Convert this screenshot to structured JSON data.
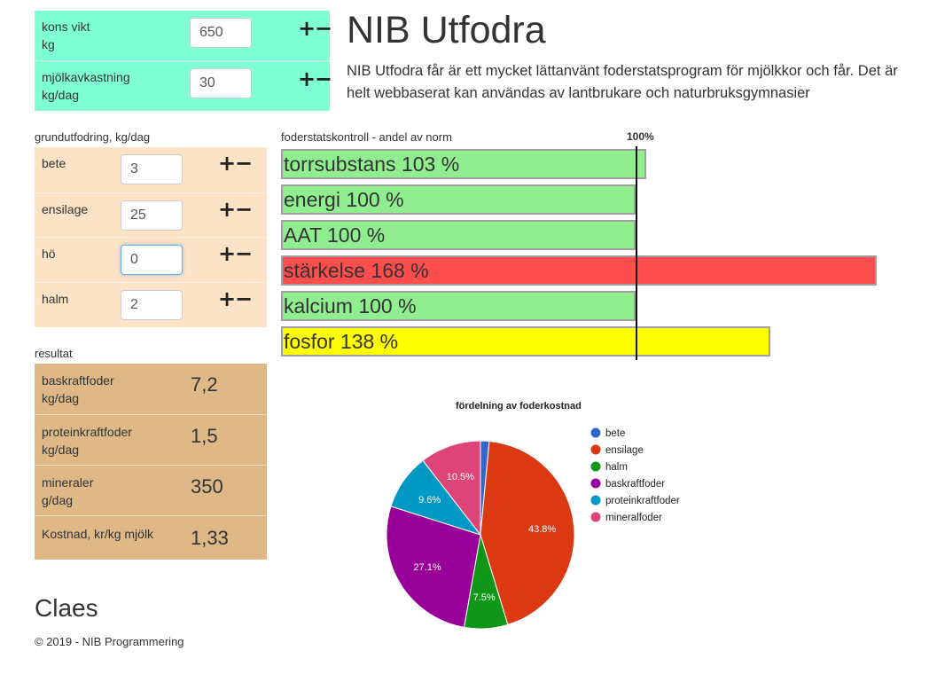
{
  "cow": {
    "rows": [
      {
        "label_line1": "kons vikt",
        "label_line2": "kg",
        "value": "650"
      },
      {
        "label_line1": "mjölkavkastning",
        "label_line2": "kg/dag",
        "value": "30"
      }
    ],
    "plus": "+",
    "minus": "−"
  },
  "header": {
    "title": "NIB Utfodra",
    "intro_line1": "NIB Utfodra får är ett mycket lättanvänt foderstatsprogram för mjölkkor och får. Det är",
    "intro_line2": "helt webbaserat kan användas av lantbrukare och naturbruksgymnasier"
  },
  "feed": {
    "heading": "grundutfodring, kg/dag",
    "items": [
      {
        "label": "bete",
        "value": "3"
      },
      {
        "label": "ensilage",
        "value": "25"
      },
      {
        "label": "hö",
        "value": "0"
      },
      {
        "label": "halm",
        "value": "2"
      }
    ]
  },
  "results": {
    "heading": "resultat",
    "items": [
      {
        "label_line1": "baskraftfoder",
        "label_line2": "kg/dag",
        "value": "7,2"
      },
      {
        "label_line1": "proteinkraftfoder",
        "label_line2": "kg/dag",
        "value": "1,5"
      },
      {
        "label_line1": "mineraler",
        "label_line2": "g/dag",
        "value": "350"
      },
      {
        "label_line1": "Kostnad, kr/kg mjölk",
        "label_line2": "",
        "value": "1,33"
      }
    ]
  },
  "control": {
    "heading": "foderstatskontroll - andel av norm",
    "norm_label": "100%",
    "bars": [
      {
        "label": "torrsubstans 103 %",
        "percent": 103,
        "status": "green"
      },
      {
        "label": "energi 100 %",
        "percent": 100,
        "status": "green"
      },
      {
        "label": "AAT 100 %",
        "percent": 100,
        "status": "green"
      },
      {
        "label": "stärkelse 168 %",
        "percent": 168,
        "status": "red"
      },
      {
        "label": "kalcium 100 %",
        "percent": 100,
        "status": "green"
      },
      {
        "label": "fosfor 138 %",
        "percent": 138,
        "status": "yellow"
      }
    ]
  },
  "chart_data": {
    "type": "pie",
    "title": "fördelning av foderkostnad",
    "legend_position": "right",
    "slices": [
      {
        "name": "bete",
        "value": 1.5,
        "color": "#3366cc",
        "label": ""
      },
      {
        "name": "ensilage",
        "value": 43.8,
        "color": "#dc3912",
        "label": "43.8%"
      },
      {
        "name": "halm",
        "value": 7.5,
        "color": "#109618",
        "label": "7.5%"
      },
      {
        "name": "baskraftfoder",
        "value": 27.1,
        "color": "#990099",
        "label": "27.1%"
      },
      {
        "name": "proteinkraftfoder",
        "value": 9.6,
        "color": "#0099c6",
        "label": "9.6%"
      },
      {
        "name": "mineralfoder",
        "value": 10.5,
        "color": "#dd4477",
        "label": "10.5%"
      }
    ]
  },
  "footer": {
    "name": "Claes",
    "copyright": "© 2019 - NIB Programmering"
  }
}
